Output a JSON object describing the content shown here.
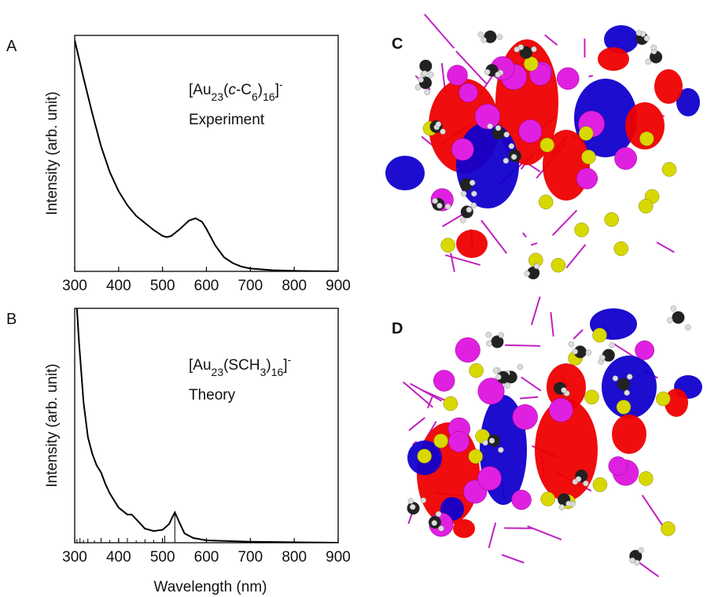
{
  "chart_data": [
    {
      "type": "line",
      "panel": "A",
      "ylabel": "Intensity (arb. unit)",
      "xlim": [
        300,
        900
      ],
      "xticks": [
        300,
        400,
        500,
        600,
        700,
        800,
        900
      ],
      "ylim": [
        0,
        1
      ],
      "series": [
        {
          "color": "#000000",
          "x": [
            300,
            310,
            320,
            340,
            360,
            380,
            400,
            420,
            440,
            460,
            480,
            500,
            510,
            520,
            540,
            560,
            575,
            590,
            600,
            620,
            640,
            660,
            680,
            700,
            750,
            800,
            900
          ],
          "values": [
            0.98,
            0.9,
            0.82,
            0.67,
            0.53,
            0.42,
            0.34,
            0.28,
            0.235,
            0.205,
            0.175,
            0.15,
            0.145,
            0.15,
            0.18,
            0.215,
            0.225,
            0.21,
            0.18,
            0.11,
            0.06,
            0.035,
            0.02,
            0.012,
            0.005,
            0.002,
            0
          ]
        }
      ],
      "annotation": {
        "formula": [
          {
            "text": "[Au"
          },
          {
            "text": "23",
            "sub": true
          },
          {
            "text": "("
          },
          {
            "text": "c",
            "italic": true
          },
          {
            "text": "-C"
          },
          {
            "text": "6",
            "sub": true
          },
          {
            "text": ")"
          },
          {
            "text": "16",
            "sub": true
          },
          {
            "text": "]"
          },
          {
            "text": "-",
            "sup": true
          }
        ],
        "label": "Experiment"
      }
    },
    {
      "type": "line",
      "panel": "B",
      "ylabel": "Intensity (arb. unit)",
      "xlabel": "Wavelength (nm)",
      "xlim": [
        300,
        900
      ],
      "xticks": [
        300,
        400,
        500,
        600,
        700,
        800,
        900
      ],
      "ylim": [
        0,
        1
      ],
      "series": [
        {
          "color": "#000000",
          "x": [
            305,
            310,
            320,
            330,
            340,
            350,
            360,
            370,
            380,
            400,
            420,
            430,
            440,
            460,
            480,
            500,
            515,
            528,
            540,
            550,
            570,
            600,
            700,
            900
          ],
          "values": [
            1.0,
            0.85,
            0.6,
            0.45,
            0.38,
            0.33,
            0.3,
            0.25,
            0.21,
            0.15,
            0.12,
            0.12,
            0.1,
            0.06,
            0.05,
            0.055,
            0.08,
            0.13,
            0.08,
            0.04,
            0.02,
            0.01,
            0.004,
            0
          ]
        }
      ],
      "sticks": {
        "x": [
          305,
          312,
          320,
          330,
          345,
          360,
          380,
          400,
          420,
          440,
          460,
          480,
          505,
          528
        ],
        "values": [
          0.015,
          0.02,
          0.012,
          0.018,
          0.01,
          0.02,
          0.012,
          0.015,
          0.02,
          0.01,
          0.015,
          0.012,
          0.03,
          0.12
        ]
      },
      "annotation": {
        "formula": [
          {
            "text": "[Au"
          },
          {
            "text": "23",
            "sub": true
          },
          {
            "text": "(SCH"
          },
          {
            "text": "3",
            "sub": true
          },
          {
            "text": ")"
          },
          {
            "text": "16",
            "sub": true
          },
          {
            "text": "]"
          },
          {
            "text": "-",
            "sup": true
          }
        ],
        "label": "Theory"
      }
    }
  ],
  "images": [
    {
      "label": "C"
    },
    {
      "label": "D"
    }
  ]
}
